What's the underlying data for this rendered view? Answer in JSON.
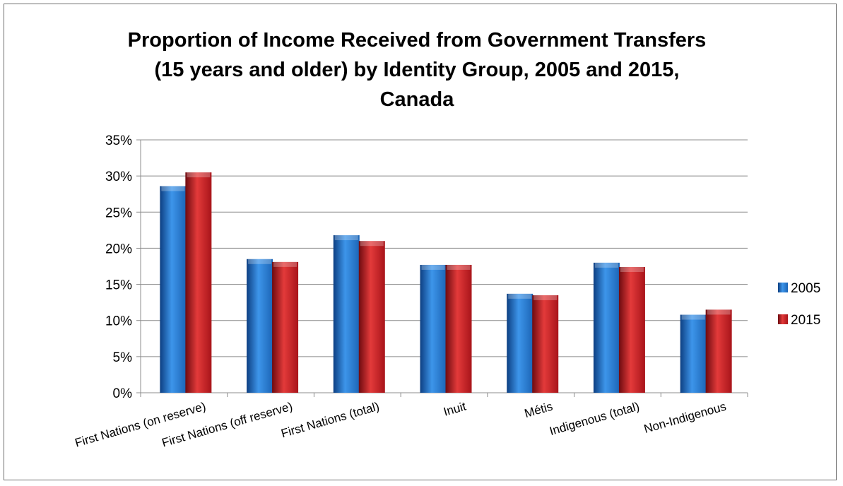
{
  "chart_data": {
    "type": "bar",
    "title": "Proportion of Income Received from Government Transfers\n(15 years and older) by Identity Group, 2005 and 2015,\nCanada",
    "categories": [
      "First Nations (on reserve)",
      "First Nations (off reserve)",
      "First Nations (total)",
      "Inuit",
      "Métis",
      "Indigenous (total)",
      "Non-Indigenous"
    ],
    "series": [
      {
        "name": "2005",
        "color": "#1f6fc5",
        "values": [
          28.6,
          18.5,
          21.8,
          17.7,
          13.7,
          18.0,
          10.8
        ]
      },
      {
        "name": "2015",
        "color": "#c0161c",
        "values": [
          30.5,
          18.1,
          21.0,
          17.7,
          13.5,
          17.4,
          11.5
        ]
      }
    ],
    "ylim": [
      0,
      35
    ],
    "yticks": [
      0,
      5,
      10,
      15,
      20,
      25,
      30,
      35
    ],
    "ytick_labels": [
      "0%",
      "5%",
      "10%",
      "15%",
      "20%",
      "25%",
      "30%",
      "35%"
    ],
    "xlabel": "",
    "ylabel": "",
    "grid": true,
    "legend_position": "right"
  }
}
